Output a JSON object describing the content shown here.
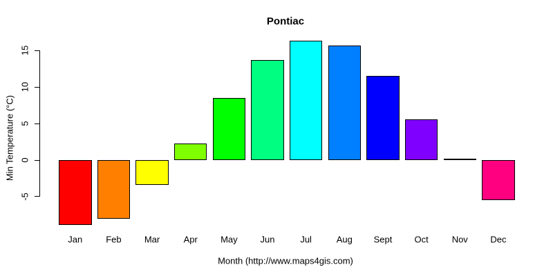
{
  "chart_data": {
    "type": "bar",
    "title": "Pontiac",
    "xlabel": "Month (http://www.maps4gis.com)",
    "ylabel": "Min Temperature (°C)",
    "categories": [
      "Jan",
      "Feb",
      "Mar",
      "Apr",
      "May",
      "Jun",
      "Jul",
      "Aug",
      "Sept",
      "Oct",
      "Nov",
      "Dec"
    ],
    "values": [
      -8.9,
      -8.0,
      -3.4,
      2.3,
      8.5,
      13.7,
      16.4,
      15.7,
      11.5,
      5.6,
      0.1,
      -5.5
    ],
    "bar_colors": [
      "#FF0000",
      "#FF8000",
      "#FFFF00",
      "#80FF00",
      "#00FF00",
      "#00FF80",
      "#00FFFF",
      "#0080FF",
      "#0000FF",
      "#8000FF",
      "#FF00FF",
      "#FF0080"
    ],
    "bar_border_color": "#000000",
    "yticks": [
      -5,
      0,
      5,
      10,
      15
    ],
    "ylim": [
      -9.5,
      17
    ],
    "grid": false,
    "legend_position": "none",
    "axis_color": "#000000",
    "background_color": "#FFFFFF"
  }
}
